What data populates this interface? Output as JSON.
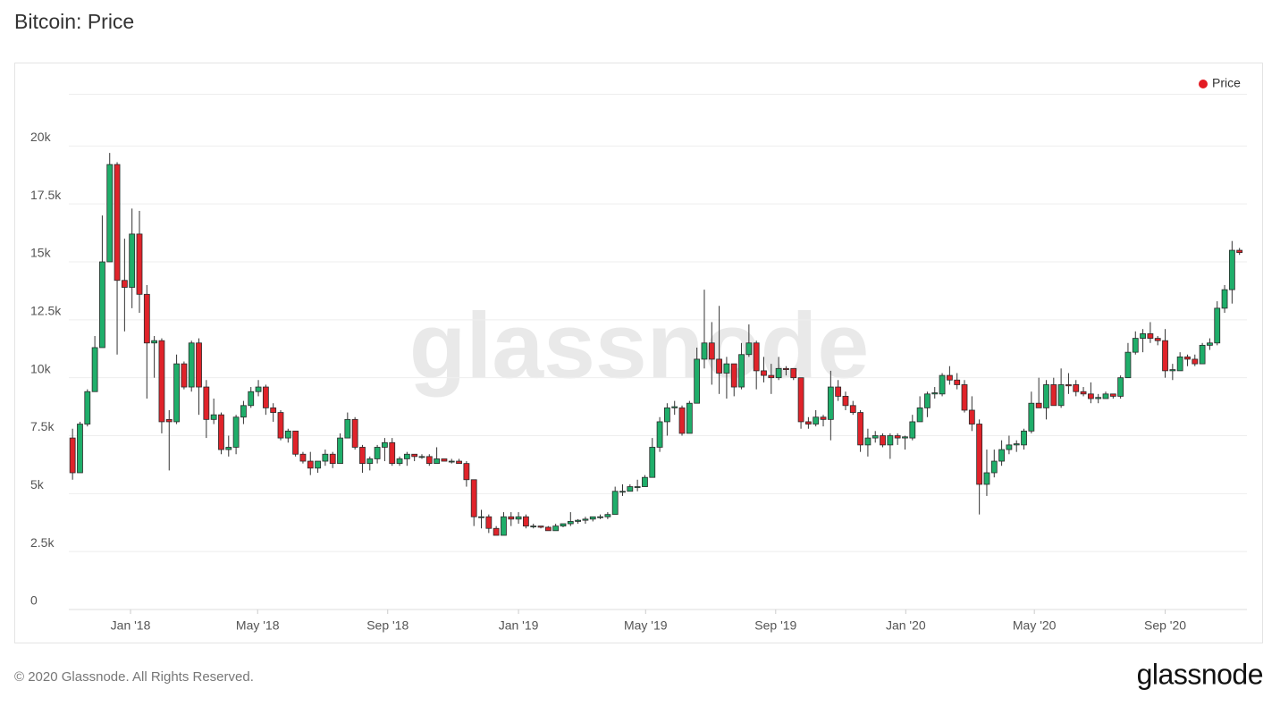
{
  "chart_data": {
    "type": "candlestick",
    "title": "Bitcoin: Price",
    "watermark": "glassnode",
    "legend": "top-right",
    "grid": true,
    "xlim": [
      -0.5,
      158
    ],
    "xticks": [
      {
        "value": 7.8,
        "label": "Jan '18"
      },
      {
        "value": 24.9,
        "label": "May '18"
      },
      {
        "value": 42.4,
        "label": "Sep '18"
      },
      {
        "value": 60.0,
        "label": "Jan '19"
      },
      {
        "value": 77.1,
        "label": "May '19"
      },
      {
        "value": 94.6,
        "label": "Sep '19"
      },
      {
        "value": 112.1,
        "label": "Jan '20"
      },
      {
        "value": 129.4,
        "label": "May '20"
      },
      {
        "value": 147.0,
        "label": "Sep '20"
      }
    ],
    "ylim": [
      0,
      22250
    ],
    "yticks": [
      0,
      {
        "value": 2500,
        "label": "2.5k"
      },
      {
        "value": 5000,
        "label": "5k"
      },
      {
        "value": 7500,
        "label": "7.5k"
      },
      {
        "value": 10000,
        "label": "10k"
      },
      {
        "value": 12500,
        "label": "12.5k"
      },
      {
        "value": 15000,
        "label": "15k"
      },
      {
        "value": 17500,
        "label": "17.5k"
      },
      {
        "value": 20000,
        "label": "20k"
      }
    ],
    "series": [
      {
        "name": "Price",
        "color": "#e31b23",
        "up_color": "#1fae6a",
        "down_color": "#e0232a",
        "ohlc": [
          [
            7400,
            7800,
            5600,
            5900
          ],
          [
            5900,
            8100,
            5900,
            8000
          ],
          [
            8000,
            9500,
            7900,
            9400
          ],
          [
            9400,
            11800,
            9400,
            11300
          ],
          [
            11300,
            17000,
            11300,
            15000
          ],
          [
            15000,
            19700,
            15000,
            19200
          ],
          [
            19200,
            19300,
            11000,
            14200
          ],
          [
            14200,
            16000,
            12000,
            13900
          ],
          [
            13900,
            17300,
            13000,
            16200
          ],
          [
            16200,
            17200,
            12800,
            13600
          ],
          [
            13600,
            14000,
            9100,
            11500
          ],
          [
            11500,
            11800,
            10000,
            11600
          ],
          [
            11600,
            11700,
            7600,
            8100
          ],
          [
            8200,
            8600,
            6000,
            8100
          ],
          [
            8100,
            11000,
            8000,
            10600
          ],
          [
            10600,
            10700,
            9500,
            9600
          ],
          [
            9600,
            11600,
            9400,
            11500
          ],
          [
            11500,
            11700,
            8400,
            9600
          ],
          [
            9600,
            9900,
            7400,
            8200
          ],
          [
            8200,
            9100,
            8000,
            8400
          ],
          [
            8400,
            8500,
            6700,
            6900
          ],
          [
            6900,
            7500,
            6600,
            7000
          ],
          [
            7000,
            8400,
            6700,
            8300
          ],
          [
            8300,
            9000,
            8000,
            8800
          ],
          [
            8800,
            9600,
            8700,
            9400
          ],
          [
            9400,
            9900,
            9200,
            9600
          ],
          [
            9600,
            9700,
            8400,
            8700
          ],
          [
            8700,
            8900,
            8100,
            8500
          ],
          [
            8500,
            8600,
            7300,
            7400
          ],
          [
            7400,
            7800,
            7200,
            7700
          ],
          [
            7700,
            7700,
            6600,
            6700
          ],
          [
            6700,
            6800,
            6300,
            6400
          ],
          [
            6400,
            6800,
            5800,
            6100
          ],
          [
            6100,
            6400,
            5900,
            6400
          ],
          [
            6400,
            6900,
            6200,
            6700
          ],
          [
            6700,
            6800,
            6100,
            6300
          ],
          [
            6300,
            7600,
            6300,
            7400
          ],
          [
            7400,
            8500,
            7400,
            8200
          ],
          [
            8200,
            8300,
            6900,
            7000
          ],
          [
            7000,
            7100,
            5900,
            6300
          ],
          [
            6300,
            6600,
            6000,
            6500
          ],
          [
            6500,
            7100,
            6300,
            7000
          ],
          [
            7000,
            7400,
            6400,
            7200
          ],
          [
            7200,
            7400,
            6200,
            6300
          ],
          [
            6300,
            6600,
            6200,
            6500
          ],
          [
            6500,
            6800,
            6200,
            6700
          ],
          [
            6700,
            6700,
            6400,
            6600
          ],
          [
            6600,
            6700,
            6500,
            6600
          ],
          [
            6600,
            6700,
            6200,
            6300
          ],
          [
            6300,
            7000,
            6300,
            6500
          ],
          [
            6500,
            6500,
            6400,
            6400
          ],
          [
            6400,
            6500,
            6300,
            6400
          ],
          [
            6400,
            6500,
            6300,
            6300
          ],
          [
            6300,
            6400,
            5300,
            5600
          ],
          [
            5600,
            5600,
            3600,
            4000
          ],
          [
            4000,
            4300,
            3500,
            4000
          ],
          [
            4000,
            4100,
            3300,
            3500
          ],
          [
            3500,
            3600,
            3200,
            3200
          ],
          [
            3200,
            4200,
            3200,
            4000
          ],
          [
            4000,
            4200,
            3600,
            3900
          ],
          [
            3900,
            4200,
            3700,
            4000
          ],
          [
            4000,
            4100,
            3500,
            3600
          ],
          [
            3600,
            3700,
            3500,
            3600
          ],
          [
            3600,
            3600,
            3500,
            3550
          ],
          [
            3550,
            3600,
            3400,
            3400
          ],
          [
            3400,
            3700,
            3400,
            3600
          ],
          [
            3600,
            3700,
            3550,
            3700
          ],
          [
            3700,
            4200,
            3600,
            3800
          ],
          [
            3800,
            3900,
            3700,
            3850
          ],
          [
            3850,
            4000,
            3700,
            3900
          ],
          [
            3900,
            4000,
            3800,
            4000
          ],
          [
            4000,
            4100,
            3900,
            4000
          ],
          [
            4000,
            4200,
            3900,
            4100
          ],
          [
            4100,
            5300,
            4100,
            5100
          ],
          [
            5100,
            5400,
            4900,
            5100
          ],
          [
            5100,
            5400,
            5100,
            5300
          ],
          [
            5300,
            5600,
            5100,
            5300
          ],
          [
            5300,
            5800,
            5300,
            5700
          ],
          [
            5700,
            7400,
            5700,
            7000
          ],
          [
            7000,
            8300,
            6800,
            8100
          ],
          [
            8100,
            8900,
            7500,
            8700
          ],
          [
            8700,
            9000,
            8400,
            8750
          ],
          [
            8700,
            8800,
            7500,
            7600
          ],
          [
            7600,
            9000,
            7600,
            8900
          ],
          [
            8900,
            11300,
            8900,
            10800
          ],
          [
            10800,
            13800,
            10400,
            11500
          ],
          [
            11500,
            12400,
            9700,
            10800
          ],
          [
            10800,
            13100,
            9300,
            10200
          ],
          [
            10200,
            10900,
            9100,
            10600
          ],
          [
            10600,
            10600,
            9200,
            9600
          ],
          [
            9600,
            11500,
            9500,
            11000
          ],
          [
            11000,
            12300,
            10900,
            11500
          ],
          [
            11500,
            11600,
            9500,
            10300
          ],
          [
            10300,
            10900,
            9800,
            10100
          ],
          [
            10100,
            10600,
            9300,
            10000
          ],
          [
            10000,
            10900,
            9900,
            10400
          ],
          [
            10400,
            10500,
            10100,
            10350
          ],
          [
            10400,
            10400,
            9900,
            10000
          ],
          [
            10000,
            10000,
            7800,
            8100
          ],
          [
            8100,
            8300,
            7800,
            8000
          ],
          [
            8000,
            8600,
            7900,
            8300
          ],
          [
            8300,
            8400,
            7900,
            8200
          ],
          [
            8200,
            10300,
            7300,
            9600
          ],
          [
            9600,
            9900,
            9000,
            9200
          ],
          [
            9200,
            9400,
            8600,
            8800
          ],
          [
            8800,
            9000,
            8400,
            8500
          ],
          [
            8500,
            8600,
            6800,
            7100
          ],
          [
            7100,
            7800,
            6600,
            7400
          ],
          [
            7400,
            7700,
            7200,
            7500
          ],
          [
            7500,
            7600,
            7000,
            7100
          ],
          [
            7100,
            7600,
            6500,
            7500
          ],
          [
            7500,
            7600,
            7100,
            7400
          ],
          [
            7400,
            7500,
            6900,
            7450
          ],
          [
            7400,
            8400,
            7300,
            8100
          ],
          [
            8100,
            9200,
            8100,
            8700
          ],
          [
            8700,
            9400,
            8300,
            9300
          ],
          [
            9300,
            9600,
            9100,
            9350
          ],
          [
            9300,
            10200,
            9200,
            10100
          ],
          [
            10100,
            10500,
            9700,
            9900
          ],
          [
            9900,
            10200,
            9500,
            9700
          ],
          [
            9700,
            9900,
            8500,
            8600
          ],
          [
            8600,
            9200,
            7700,
            8000
          ],
          [
            8000,
            8200,
            4100,
            5400
          ],
          [
            5400,
            6900,
            4900,
            5900
          ],
          [
            5900,
            6900,
            5700,
            6400
          ],
          [
            6400,
            7300,
            6200,
            6900
          ],
          [
            6900,
            7500,
            6700,
            7100
          ],
          [
            7100,
            7300,
            6800,
            7150
          ],
          [
            7100,
            7800,
            6900,
            7700
          ],
          [
            7700,
            9400,
            7600,
            8900
          ],
          [
            8900,
            10000,
            8700,
            8700
          ],
          [
            8700,
            9900,
            8200,
            9700
          ],
          [
            9700,
            10000,
            8800,
            8800
          ],
          [
            8800,
            10400,
            8700,
            9700
          ],
          [
            9700,
            10200,
            9300,
            9650
          ],
          [
            9700,
            9900,
            9200,
            9400
          ],
          [
            9400,
            9600,
            9200,
            9300
          ],
          [
            9300,
            9800,
            8900,
            9100
          ],
          [
            9100,
            9300,
            8900,
            9150
          ],
          [
            9100,
            9400,
            9100,
            9300
          ],
          [
            9300,
            9300,
            9100,
            9200
          ],
          [
            9200,
            10100,
            9100,
            10000
          ],
          [
            10000,
            11500,
            10000,
            11100
          ],
          [
            11100,
            12000,
            11000,
            11700
          ],
          [
            11700,
            12100,
            11100,
            11900
          ],
          [
            11900,
            12400,
            11500,
            11700
          ],
          [
            11700,
            11800,
            11400,
            11600
          ],
          [
            11600,
            12100,
            10000,
            10300
          ],
          [
            10300,
            10600,
            9900,
            10350
          ],
          [
            10300,
            11100,
            10300,
            10900
          ],
          [
            10900,
            11000,
            10500,
            10800
          ],
          [
            10800,
            11000,
            10500,
            10600
          ],
          [
            10600,
            11500,
            10600,
            11400
          ],
          [
            11400,
            11700,
            11200,
            11500
          ],
          [
            11500,
            13300,
            11400,
            13000
          ],
          [
            13000,
            14000,
            12800,
            13800
          ],
          [
            13800,
            15900,
            13200,
            15500
          ],
          [
            15500,
            15600,
            15300,
            15400
          ]
        ]
      }
    ]
  },
  "footer": {
    "copyright": "© 2020 Glassnode. All Rights Reserved.",
    "logo": "glassnode"
  }
}
